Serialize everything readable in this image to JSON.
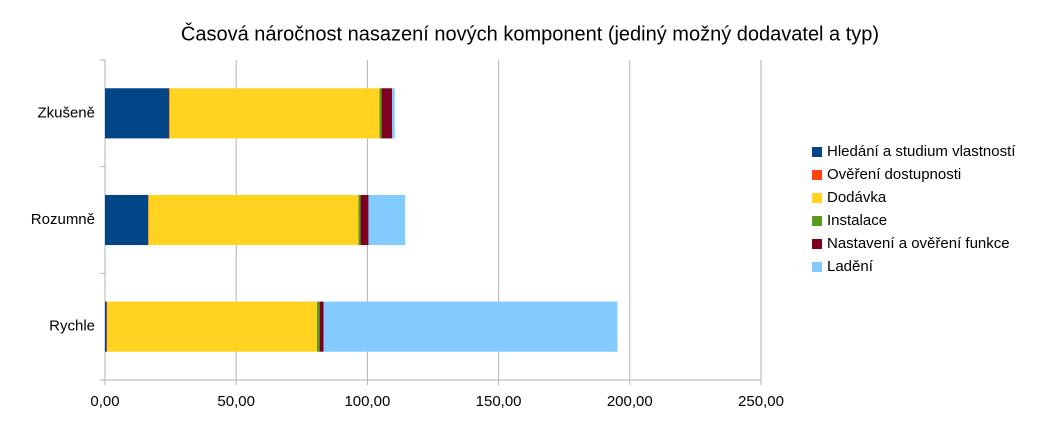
{
  "chart_data": {
    "type": "stacked-barh",
    "title": "Časová náročnost nasazení nových komponent (jediný možný dodavatel a typ)",
    "categories": [
      "Zkušeně",
      "Rozumně",
      "Rychle"
    ],
    "series": [
      {
        "name": "Hledání a studium vlastností",
        "color": "#004586",
        "values": [
          24.4,
          16.4,
          0.6
        ]
      },
      {
        "name": "Ověření dostupnosti",
        "color": "#ff420e",
        "values": [
          0.2,
          0.2,
          0.2
        ]
      },
      {
        "name": "Dodávka",
        "color": "#ffd320",
        "values": [
          80,
          80,
          80
        ]
      },
      {
        "name": "Instalace",
        "color": "#579d1c",
        "values": [
          0.8,
          0.8,
          1
        ]
      },
      {
        "name": "Nastavení a ověření funkce",
        "color": "#7e0021",
        "values": [
          4,
          3,
          1.5
        ]
      },
      {
        "name": "Ladění",
        "color": "#83caff",
        "values": [
          1,
          14,
          112
        ]
      }
    ],
    "xlim": [
      0,
      250
    ],
    "xticks": [
      {
        "value": 0,
        "label": "0,00"
      },
      {
        "value": 50,
        "label": "50,00"
      },
      {
        "value": 100,
        "label": "100,00"
      },
      {
        "value": 150,
        "label": "150,00"
      },
      {
        "value": 200,
        "label": "200,00"
      },
      {
        "value": 250,
        "label": "250,00"
      }
    ],
    "grid": true,
    "legend": "right"
  }
}
